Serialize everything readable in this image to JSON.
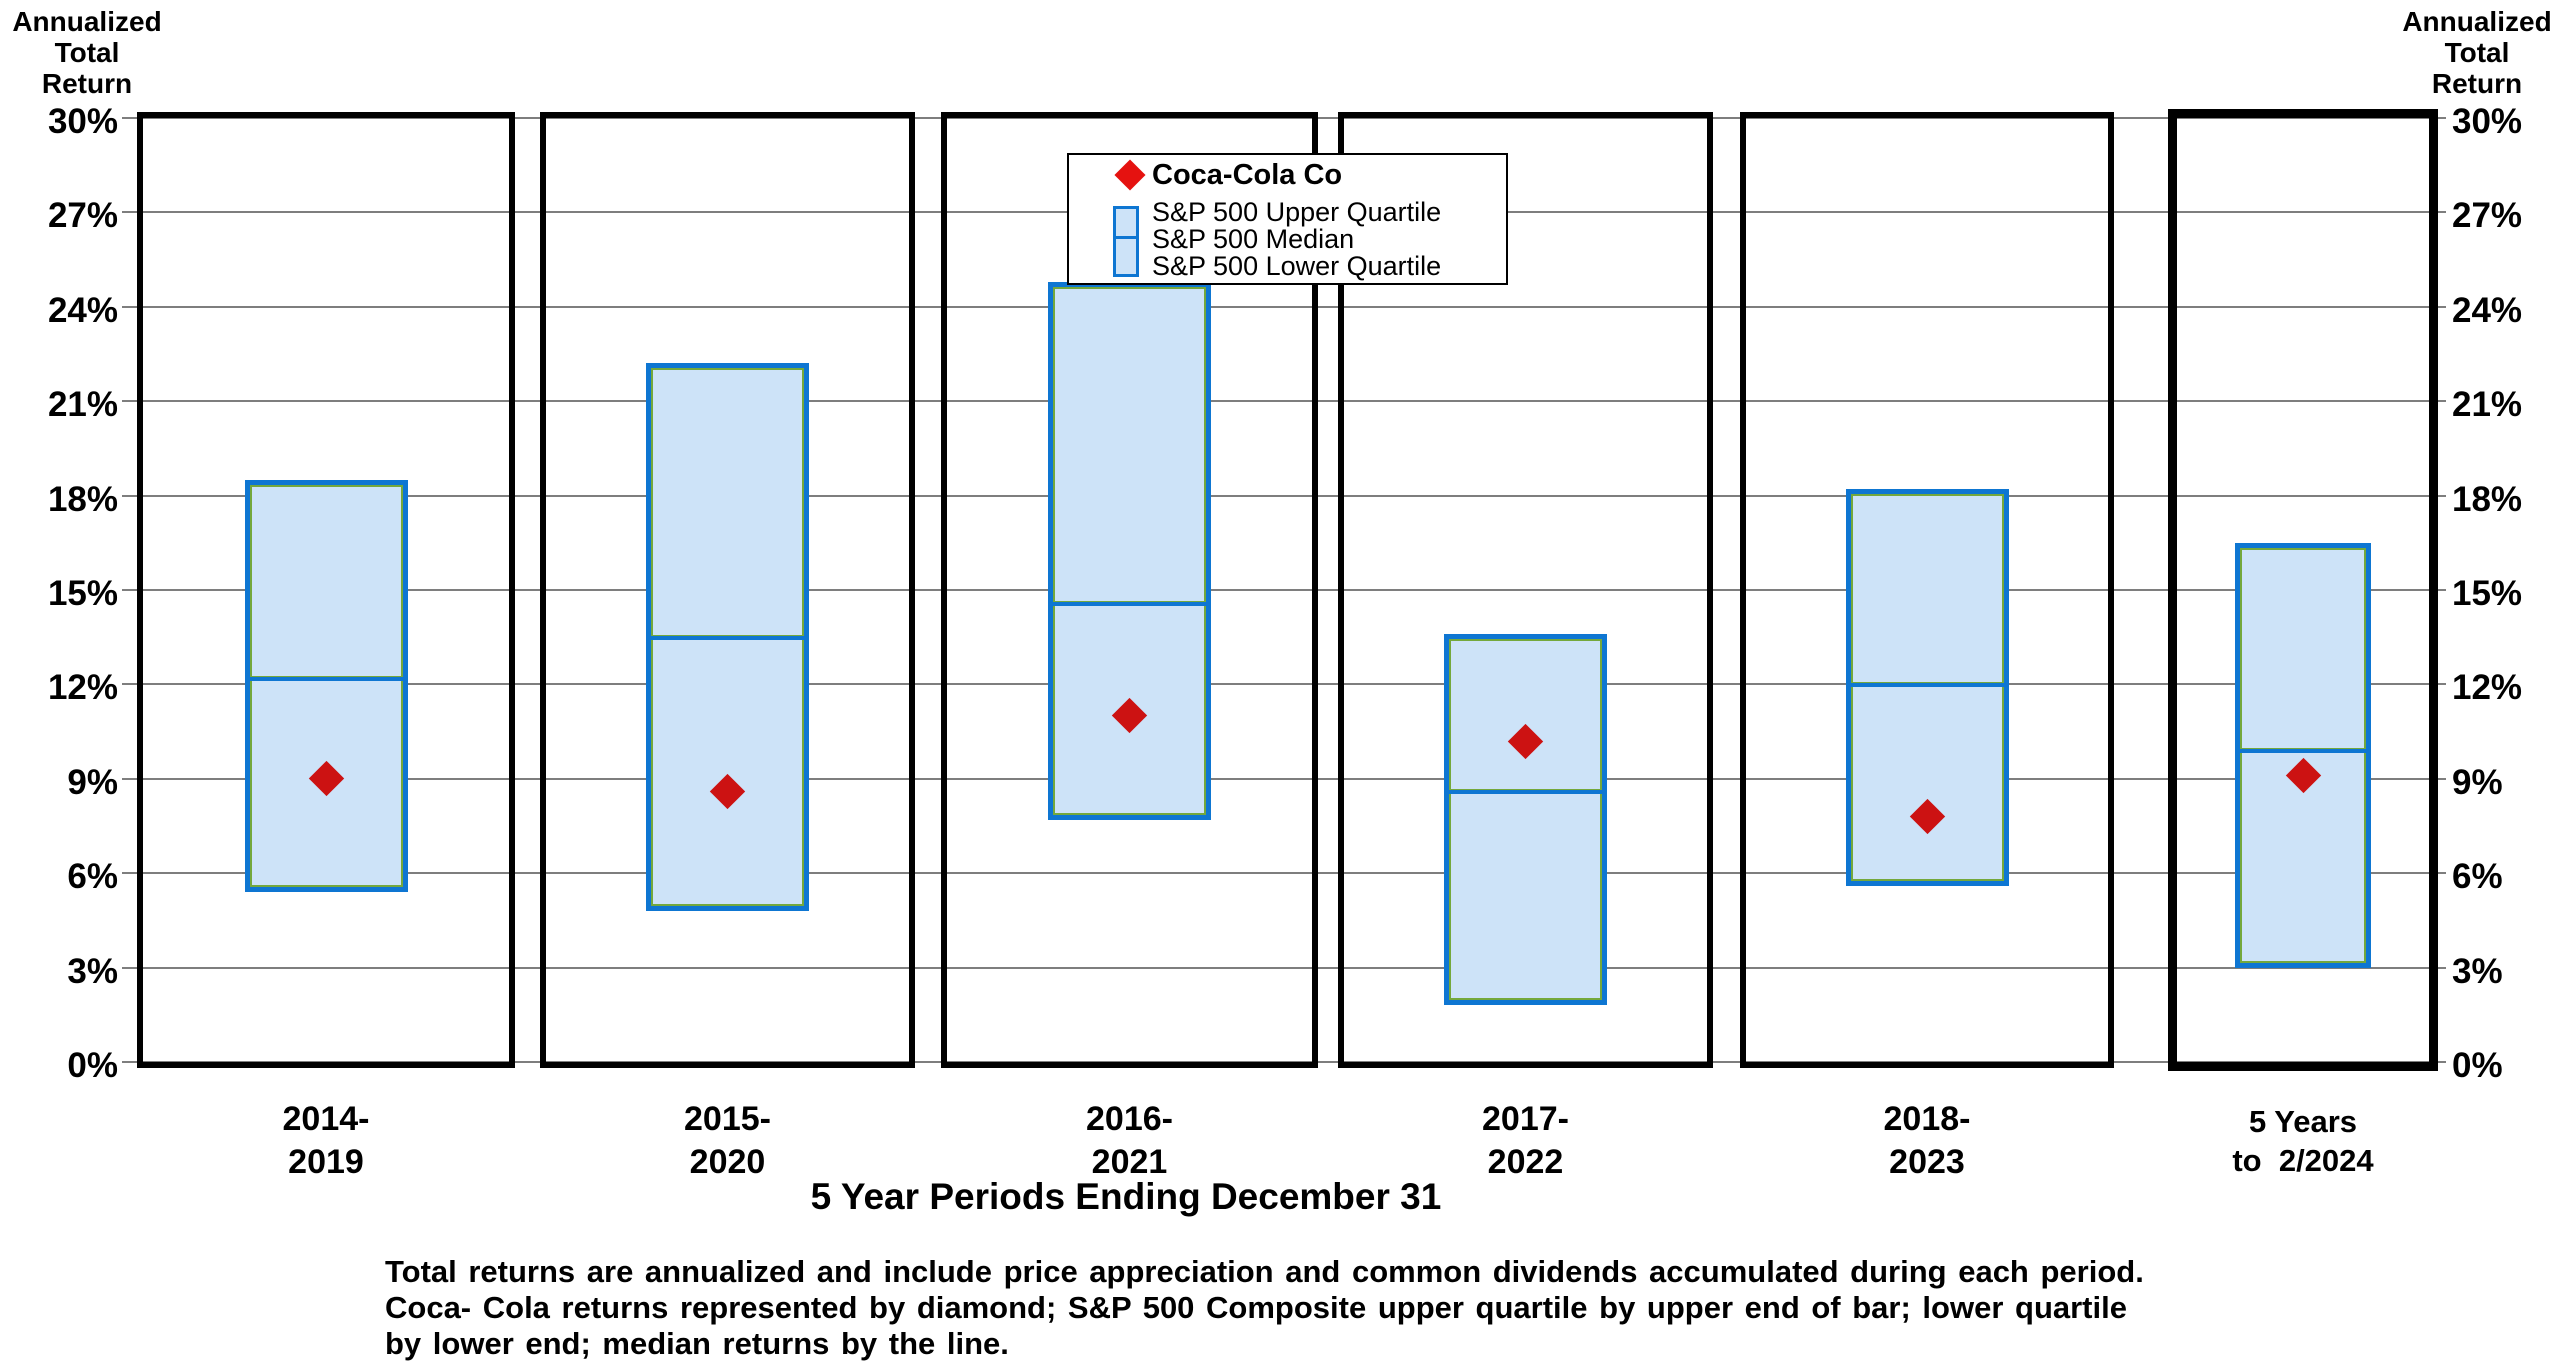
{
  "axis": {
    "title_lines": [
      "Annualized",
      "Total",
      "Return"
    ]
  },
  "legend": {
    "coca_cola": "Coca-Cola Co",
    "upper": "S&P 500 Upper Quartile",
    "median": "S&P 500 Median",
    "lower": "S&P 500 Lower Quartile"
  },
  "caption": "5 Year Periods Ending December 31",
  "footnote_lines": [
    "Total returns are annualized and include price appreciation and common dividends accumulated during each period.",
    "Coca- Cola returns represented by diamond; S&P 500 Composite upper quartile by upper end of bar; lower quartile",
    "by lower end; median returns by the line."
  ],
  "chart_data": {
    "type": "bar",
    "subtype": "floating-quartile-range-bars-with-diamond-point-markers",
    "title": "",
    "xlabel": "5 Year Periods Ending December 31",
    "ylabel": "Annualized Total Return",
    "categories": [
      [
        "2014-",
        "2019"
      ],
      [
        "2015-",
        "2020"
      ],
      [
        "2016-",
        "2021"
      ],
      [
        "2017-",
        "2022"
      ],
      [
        "2018-",
        "2023"
      ],
      [
        "5 Years",
        "to  2/2024"
      ]
    ],
    "series": [
      {
        "name": "Coca-Cola Co",
        "kind": "point",
        "marker": "diamond",
        "values": [
          9.0,
          8.6,
          11.0,
          10.2,
          7.8,
          9.1
        ]
      },
      {
        "name": "S&P 500 Upper Quartile",
        "kind": "bar-top",
        "values": [
          18.5,
          22.2,
          24.8,
          13.6,
          18.2,
          16.5
        ]
      },
      {
        "name": "S&P 500 Median",
        "kind": "bar-median",
        "values": [
          12.2,
          13.5,
          14.6,
          8.6,
          12.0,
          9.9
        ]
      },
      {
        "name": "S&P 500 Lower Quartile",
        "kind": "bar-bottom",
        "values": [
          5.4,
          4.8,
          7.7,
          1.8,
          5.6,
          3.0
        ]
      }
    ],
    "ylim": [
      0,
      30
    ],
    "ytick_step": 3,
    "yticks": [
      0,
      3,
      6,
      9,
      12,
      15,
      18,
      21,
      24,
      27,
      30
    ],
    "ytick_suffix": "%",
    "grid": true,
    "legend_position": "top-center",
    "highlighted_panel_index": 5,
    "colors": {
      "bar_fill": "#cde3f8",
      "bar_border": "#0e76d2",
      "bar_inner_hairline": "#74a83c",
      "gridline": "#7e7e7e",
      "marker": "#cc1212",
      "legend_marker": "#e51210",
      "panel_border": "#000000"
    }
  }
}
